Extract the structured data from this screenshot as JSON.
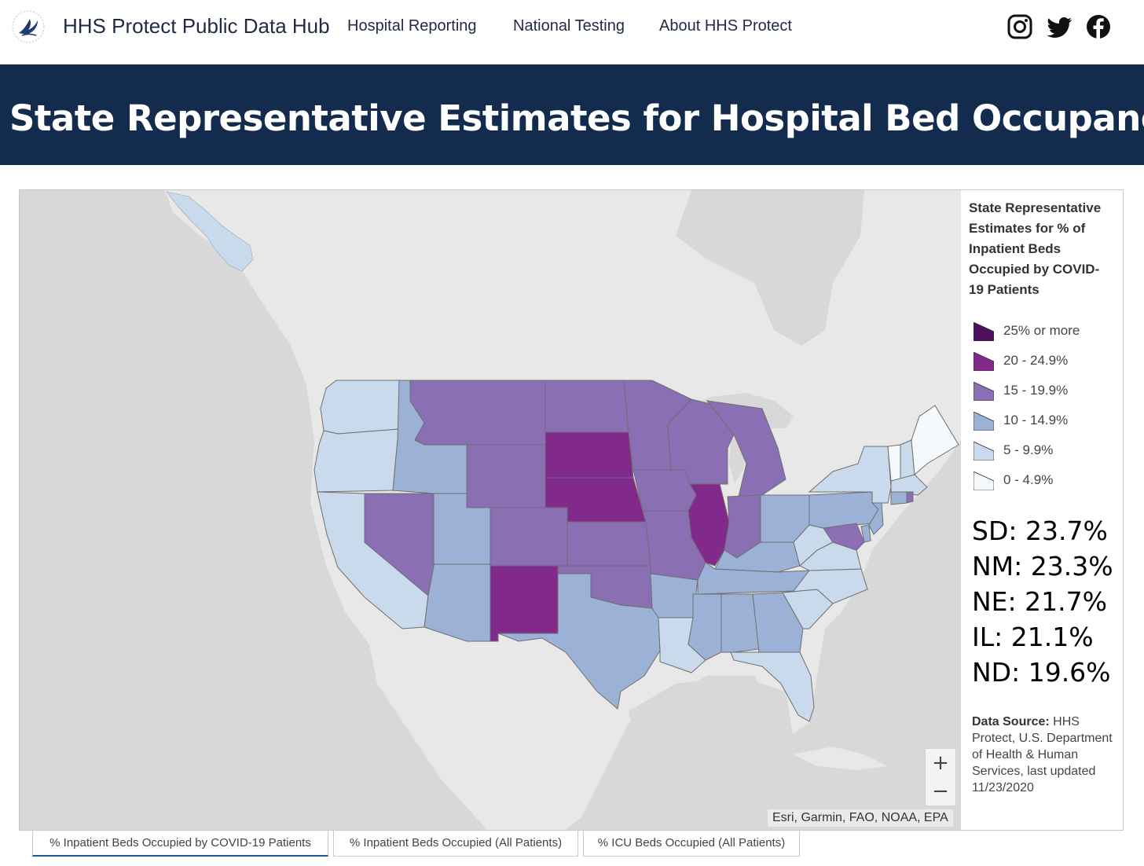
{
  "nav": {
    "brand": "HHS Protect Public Data Hub",
    "links": [
      "Hospital Reporting",
      "National Testing",
      "About HHS Protect"
    ],
    "social": [
      "instagram-icon",
      "twitter-icon",
      "facebook-icon"
    ]
  },
  "banner": {
    "title": "State Representative Estimates for Hospital Bed Occupancy"
  },
  "legend": {
    "title": "State Representative Estimates for % of Inpatient Beds Occupied by COVID-19 Patients",
    "classes": [
      {
        "label": "25% or more",
        "color": "#4d0f5e"
      },
      {
        "label": "20 - 24.9%",
        "color": "#822a8c"
      },
      {
        "label": "15 - 19.9%",
        "color": "#8a6fb5"
      },
      {
        "label": "10 - 14.9%",
        "color": "#9bb2d6"
      },
      {
        "label": "5 - 9.9%",
        "color": "#c9daec"
      },
      {
        "label": "0 - 4.9%",
        "color": "#f6f9fc"
      }
    ]
  },
  "highlights": [
    {
      "text": "SD: 23.7%"
    },
    {
      "text": "NM: 23.3%"
    },
    {
      "text": "NE: 21.7%"
    },
    {
      "text": "IL: 21.1%"
    },
    {
      "text": "ND: 19.6%"
    }
  ],
  "source": {
    "label": "Data Source:",
    "text": "HHS Protect, U.S. Department of Health & Human Services, last updated 11/23/2020"
  },
  "map": {
    "attribution": "Esri, Garmin, FAO, NOAA, EPA",
    "zoom_in": "+",
    "zoom_out": "−",
    "state_classes": {
      "WA": "5 - 9.9%",
      "OR": "5 - 9.9%",
      "CA": "5 - 9.9%",
      "ID": "10 - 14.9%",
      "NV": "15 - 19.9%",
      "UT": "10 - 14.9%",
      "AZ": "10 - 14.9%",
      "MT": "15 - 19.9%",
      "WY": "15 - 19.9%",
      "CO": "15 - 19.9%",
      "NM": "20 - 24.9%",
      "ND": "15 - 19.9%",
      "SD": "20 - 24.9%",
      "NE": "20 - 24.9%",
      "KS": "15 - 19.9%",
      "OK": "15 - 19.9%",
      "TX": "10 - 14.9%",
      "MN": "15 - 19.9%",
      "IA": "15 - 19.9%",
      "MO": "15 - 19.9%",
      "AR": "10 - 14.9%",
      "LA": "5 - 9.9%",
      "WI": "15 - 19.9%",
      "IL": "20 - 24.9%",
      "MI": "15 - 19.9%",
      "IN": "15 - 19.9%",
      "OH": "10 - 14.9%",
      "KY": "10 - 14.9%",
      "TN": "10 - 14.9%",
      "MS": "10 - 14.9%",
      "AL": "10 - 14.9%",
      "GA": "10 - 14.9%",
      "FL": "5 - 9.9%",
      "SC": "5 - 9.9%",
      "NC": "5 - 9.9%",
      "VA": "5 - 9.9%",
      "WV": "5 - 9.9%",
      "PA": "10 - 14.9%",
      "NY": "5 - 9.9%",
      "NJ": "10 - 14.9%",
      "MD": "15 - 19.9%",
      "DE": "10 - 14.9%",
      "CT": "10 - 14.9%",
      "RI": "15 - 19.9%",
      "MA": "5 - 9.9%",
      "VT": "0 - 4.9%",
      "NH": "5 - 9.9%",
      "ME": "0 - 4.9%"
    }
  },
  "tabs": [
    {
      "label": "% Inpatient Beds Occupied by COVID-19 Patients"
    },
    {
      "label": "% Inpatient Beds Occupied (All Patients)"
    },
    {
      "label": "% ICU Beds Occupied (All Patients)"
    }
  ]
}
